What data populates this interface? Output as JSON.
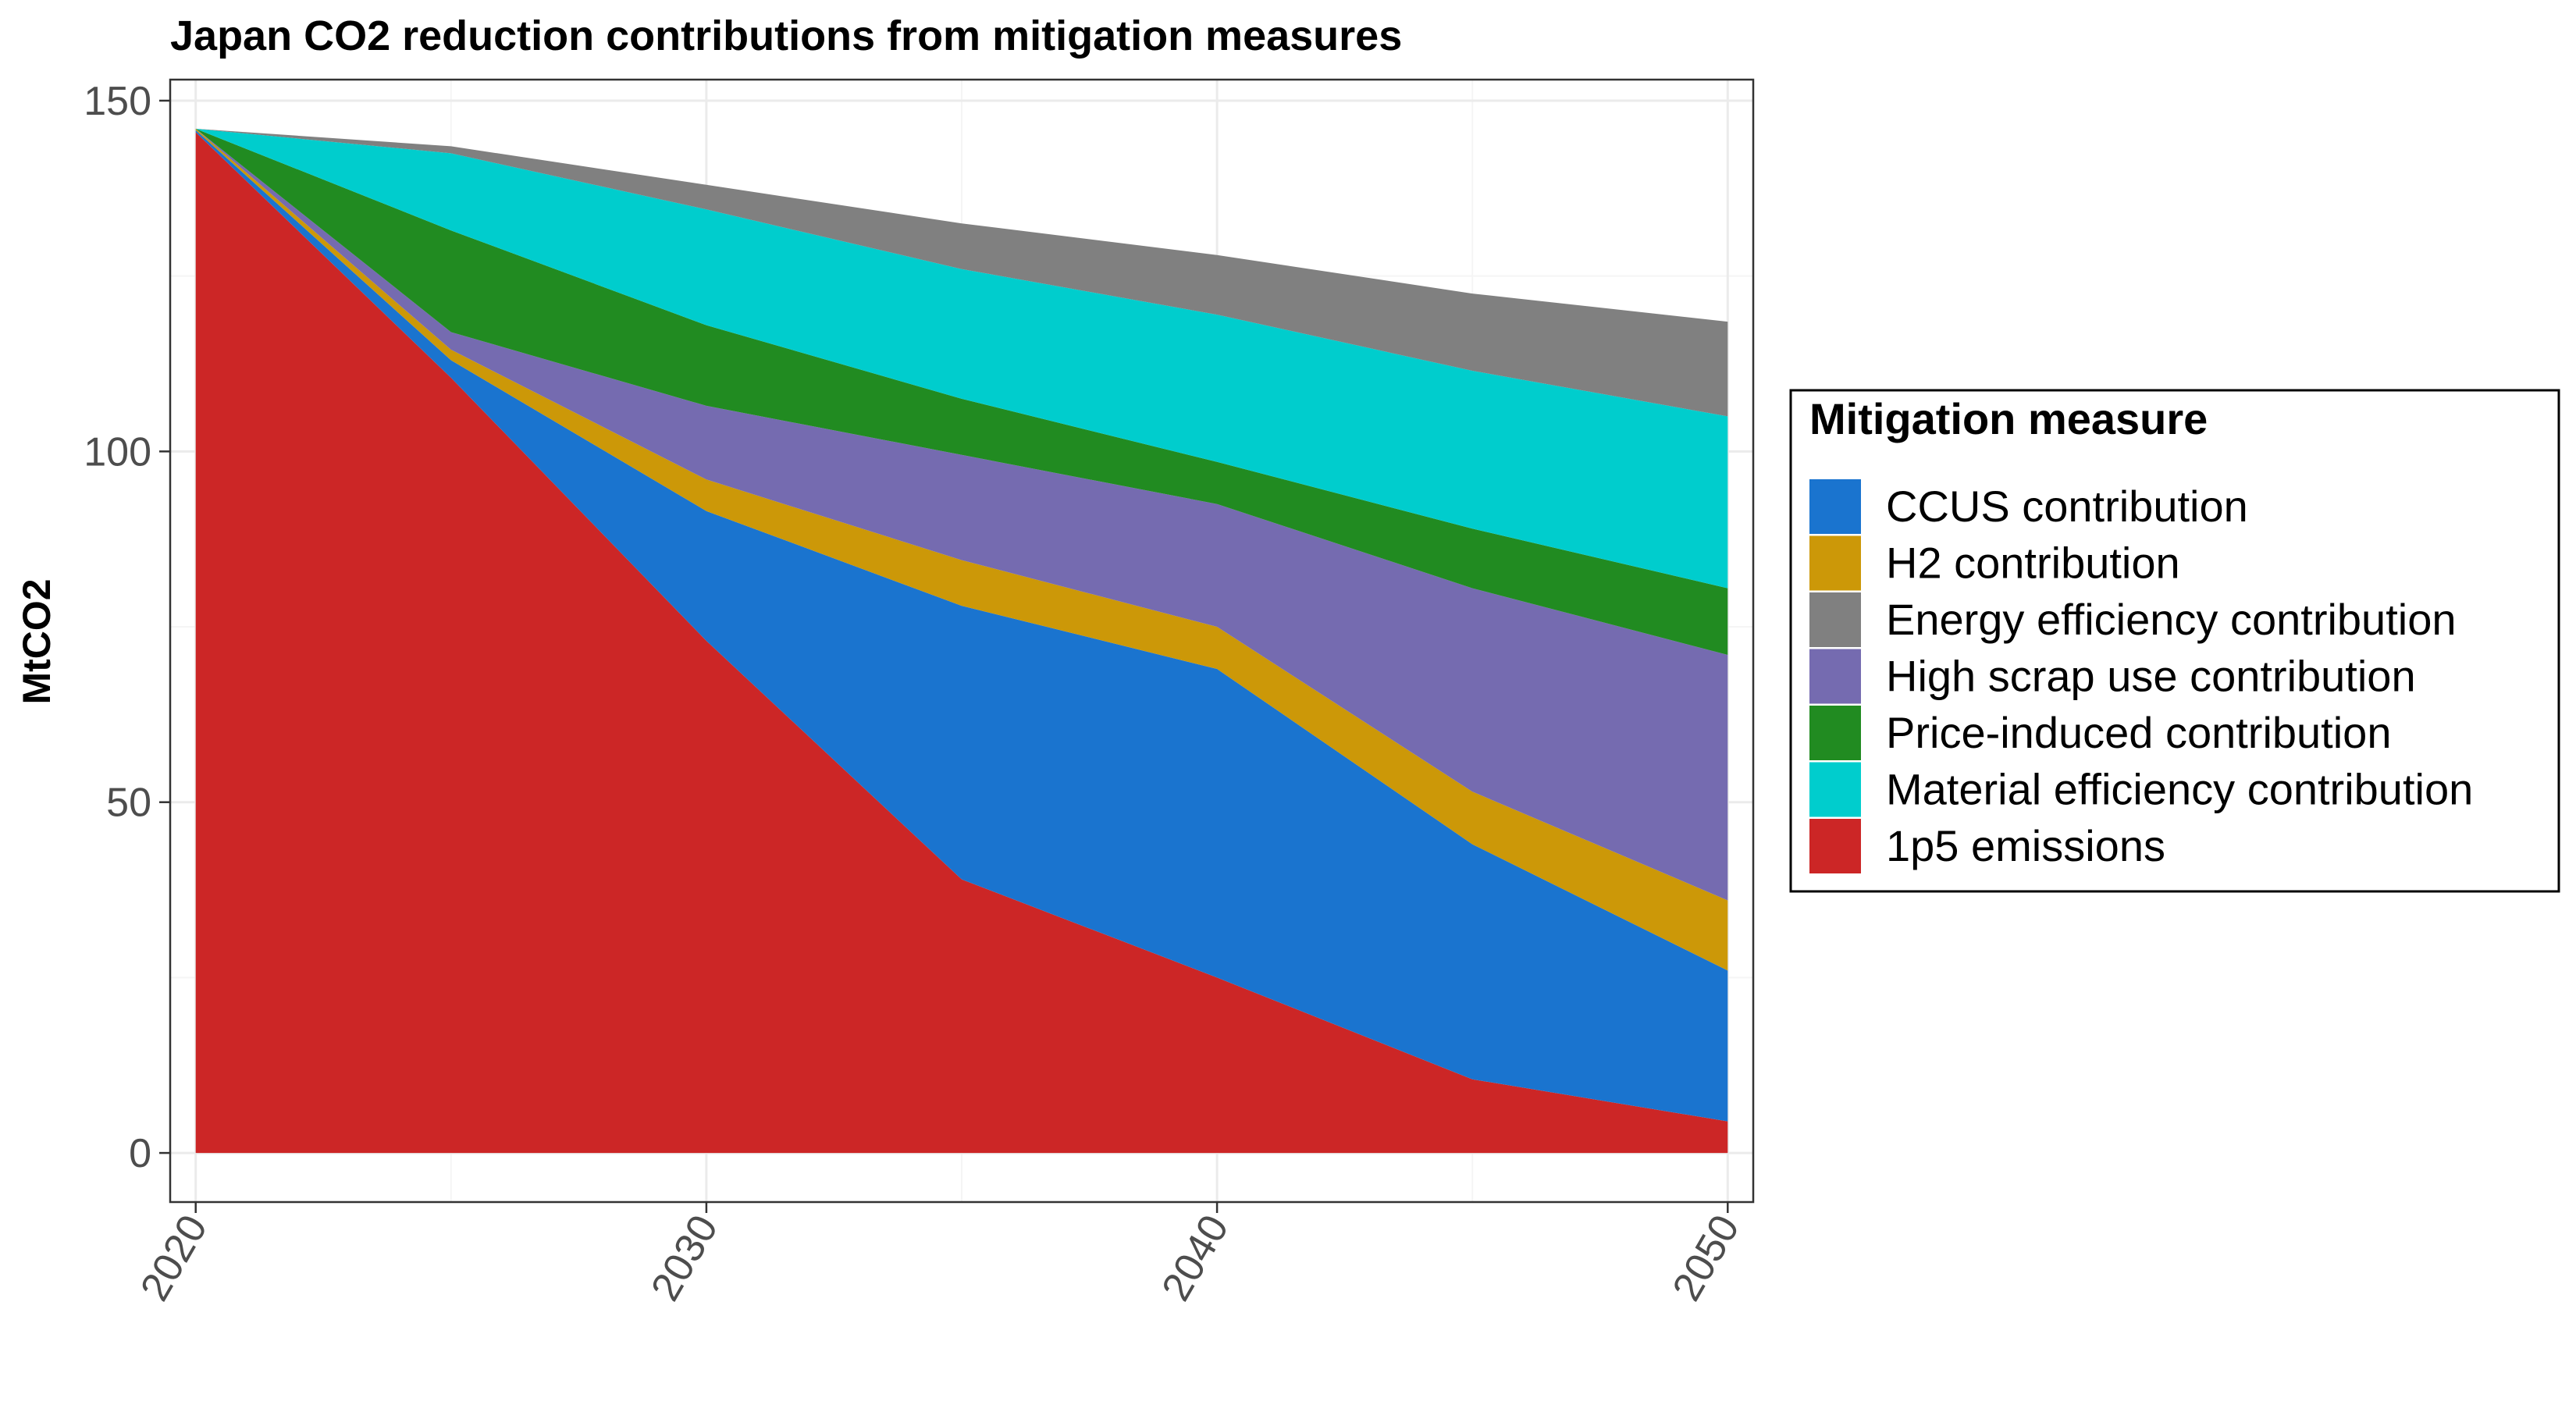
{
  "chart_data": {
    "type": "area",
    "stacked": true,
    "title": "Japan CO2 reduction contributions from mitigation measures",
    "xlabel": "",
    "ylabel": "MtCO2",
    "x": [
      2020,
      2025,
      2030,
      2035,
      2040,
      2045,
      2050
    ],
    "xticks": [
      "2020",
      "2030",
      "2040",
      "2050"
    ],
    "yticks": [
      "0",
      "50",
      "100",
      "150"
    ],
    "xlim": [
      2019.5,
      2050.5
    ],
    "ylim": [
      -7,
      153
    ],
    "grid": true,
    "legend": {
      "title": "Mitigation measure",
      "position": "right"
    },
    "stack_order_bottom_to_top": [
      "1p5 emissions",
      "CCUS contribution",
      "H2 contribution",
      "High scrap use contribution",
      "Price-induced contribution",
      "Material efficiency contribution",
      "Energy efficiency contribution"
    ],
    "series": [
      {
        "name": "CCUS contribution",
        "color": "#1a74cf",
        "values": [
          0.3,
          2.5,
          18.5,
          39.0,
          44.0,
          33.5,
          21.5
        ]
      },
      {
        "name": "H2 contribution",
        "color": "#cc9808",
        "values": [
          0.2,
          1.5,
          4.5,
          6.5,
          6.0,
          7.5,
          10.0
        ]
      },
      {
        "name": "Energy efficiency contribution",
        "color": "#808080",
        "values": [
          0.0,
          1.0,
          3.5,
          6.5,
          8.5,
          11.0,
          13.5
        ]
      },
      {
        "name": "High scrap use contribution",
        "color": "#756bb0",
        "values": [
          0.0,
          2.5,
          10.5,
          15.0,
          17.5,
          29.0,
          35.0
        ]
      },
      {
        "name": "Price-induced contribution",
        "color": "#218b21",
        "values": [
          0.0,
          14.5,
          11.5,
          8.0,
          6.0,
          8.5,
          9.5
        ]
      },
      {
        "name": "Material efficiency contribution",
        "color": "#00cdcd",
        "values": [
          0.0,
          11.0,
          16.5,
          18.5,
          21.0,
          22.5,
          24.5
        ]
      },
      {
        "name": "1p5 emissions",
        "color": "#cc2626",
        "values": [
          145.5,
          110.5,
          73.0,
          39.0,
          25.0,
          10.5,
          4.5
        ]
      }
    ]
  },
  "colors": {
    "panel_border": "#333333",
    "grid_major": "#ebebeb",
    "grid_minor": "#f5f5f5",
    "tick_text": "#4d4d4d"
  }
}
